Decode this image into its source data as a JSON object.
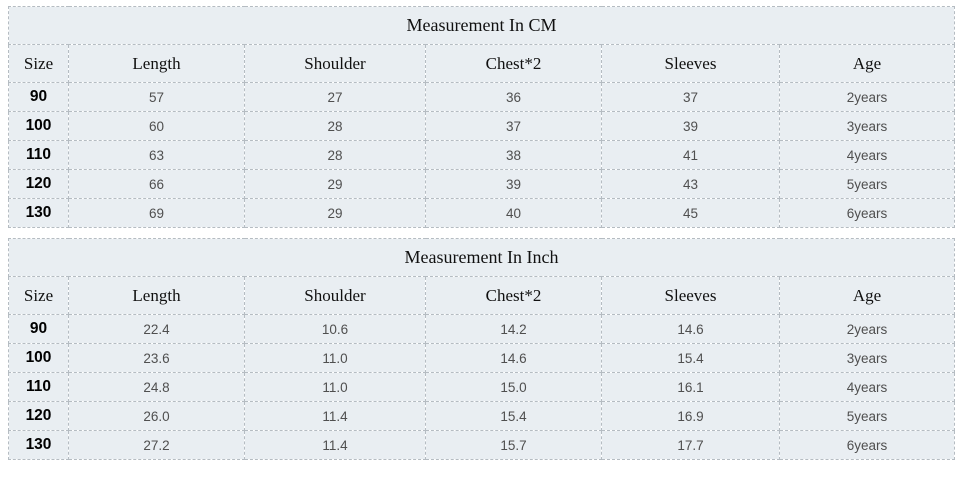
{
  "colors": {
    "page_bg": "#ffffff",
    "cell_bg": "#e9eef2",
    "border": "#b5bcc2",
    "heading_text": "#111111",
    "data_text": "#4f4f4f",
    "size_text": "#000000"
  },
  "chart_data": [
    {
      "type": "table",
      "title": "Measurement In CM",
      "columns": [
        "Size",
        "Length",
        "Shoulder",
        "Chest*2",
        "Sleeves",
        "Age"
      ],
      "rows": [
        [
          "90",
          "57",
          "27",
          "36",
          "37",
          "2years"
        ],
        [
          "100",
          "60",
          "28",
          "37",
          "39",
          "3years"
        ],
        [
          "110",
          "63",
          "28",
          "38",
          "41",
          "4years"
        ],
        [
          "120",
          "66",
          "29",
          "39",
          "43",
          "5years"
        ],
        [
          "130",
          "69",
          "29",
          "40",
          "45",
          "6years"
        ]
      ]
    },
    {
      "type": "table",
      "title": "Measurement In Inch",
      "columns": [
        "Size",
        "Length",
        "Shoulder",
        "Chest*2",
        "Sleeves",
        "Age"
      ],
      "rows": [
        [
          "90",
          "22.4",
          "10.6",
          "14.2",
          "14.6",
          "2years"
        ],
        [
          "100",
          "23.6",
          "11.0",
          "14.6",
          "15.4",
          "3years"
        ],
        [
          "110",
          "24.8",
          "11.0",
          "15.0",
          "16.1",
          "4years"
        ],
        [
          "120",
          "26.0",
          "11.4",
          "15.4",
          "16.9",
          "5years"
        ],
        [
          "130",
          "27.2",
          "11.4",
          "15.7",
          "17.7",
          "6years"
        ]
      ]
    }
  ]
}
